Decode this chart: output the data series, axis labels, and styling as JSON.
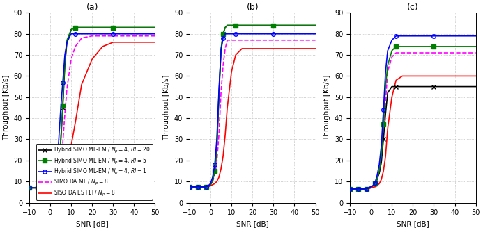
{
  "snr": [
    -10,
    -9,
    -8,
    -7,
    -6,
    -5,
    -4,
    -3,
    -2,
    -1,
    0,
    1,
    2,
    3,
    4,
    5,
    6,
    7,
    8,
    10,
    12,
    15,
    20,
    25,
    30,
    40,
    50
  ],
  "panel_a": {
    "title": "(a)",
    "hybrid_ri20": [
      7,
      7,
      7,
      7,
      7,
      7,
      7,
      7,
      7,
      7.2,
      7.5,
      8,
      9,
      11,
      16,
      28,
      45,
      65,
      76,
      82,
      83,
      83,
      83,
      83,
      83,
      83,
      83
    ],
    "hybrid_ri5": [
      7,
      7,
      7,
      7,
      7,
      7,
      7,
      7,
      7,
      7.2,
      7.5,
      8,
      9,
      11,
      16,
      29,
      46,
      67,
      77,
      82,
      83,
      83,
      83,
      83,
      83,
      83,
      83
    ],
    "hybrid_ri1": [
      7,
      7,
      7,
      7,
      7,
      7,
      7,
      7,
      7,
      7.2,
      7.5,
      8,
      9.5,
      14,
      28,
      44,
      57,
      70,
      76,
      80,
      80,
      80,
      80,
      80,
      80,
      80,
      80
    ],
    "simo_da_ml": [
      7,
      7,
      7,
      7,
      7,
      7,
      7,
      7,
      7,
      7.2,
      7.5,
      8,
      9,
      11,
      14,
      20,
      28,
      42,
      54,
      68,
      74,
      78,
      79,
      79,
      79,
      79,
      79
    ],
    "siso_da_ls": [
      7,
      7,
      7,
      7,
      7,
      7,
      7,
      7,
      7,
      7,
      7.2,
      7.3,
      7.5,
      8,
      8.5,
      9.5,
      11,
      14,
      18,
      27,
      38,
      56,
      68,
      74,
      76,
      76,
      76
    ]
  },
  "panel_b": {
    "title": "(b)",
    "hybrid_ri20": [
      7.5,
      7.5,
      7.5,
      7.5,
      7.5,
      7.5,
      7.5,
      7.5,
      7.5,
      7.8,
      8.5,
      10,
      15,
      25,
      50,
      72,
      80,
      83,
      84,
      84,
      84,
      84,
      84,
      84,
      84,
      84,
      84
    ],
    "hybrid_ri5": [
      7.5,
      7.5,
      7.5,
      7.5,
      7.5,
      7.5,
      7.5,
      7.5,
      7.5,
      7.8,
      8.5,
      10,
      15,
      26,
      51,
      73,
      80,
      83,
      84,
      84,
      84,
      84,
      84,
      84,
      84,
      84,
      84
    ],
    "hybrid_ri1": [
      7.5,
      7.5,
      7.5,
      7.5,
      7.5,
      7.5,
      7.5,
      7.5,
      7.5,
      8,
      9,
      12,
      18,
      30,
      53,
      72,
      78,
      80,
      80,
      80,
      80,
      80,
      80,
      80,
      80,
      80,
      80
    ],
    "simo_da_ml": [
      7.5,
      7.5,
      7.5,
      7.5,
      7.5,
      7.5,
      7.5,
      7.5,
      7.5,
      8,
      9,
      10.5,
      13,
      19,
      32,
      52,
      65,
      73,
      77,
      77,
      77,
      77,
      77,
      77,
      77,
      77,
      77
    ],
    "siso_da_ls": [
      7.5,
      7.5,
      7.5,
      7.5,
      7.5,
      7.5,
      7.5,
      7.5,
      7.5,
      7.5,
      8,
      8.5,
      9,
      10,
      12,
      16,
      22,
      32,
      45,
      62,
      70,
      73,
      73,
      73,
      73,
      73,
      73
    ]
  },
  "panel_c": {
    "title": "(c)",
    "hybrid_ri20": [
      6.5,
      6.5,
      6.5,
      6.5,
      6.5,
      6.5,
      6.5,
      6.5,
      6.5,
      7,
      7.5,
      8,
      9,
      11,
      14,
      19,
      30,
      42,
      52,
      55,
      55,
      55,
      55,
      55,
      55,
      55,
      55
    ],
    "hybrid_ri5": [
      6.5,
      6.5,
      6.5,
      6.5,
      6.5,
      6.5,
      6.5,
      6.5,
      6.5,
      7,
      7.5,
      8,
      9,
      11,
      15,
      22,
      37,
      55,
      65,
      72,
      74,
      74,
      74,
      74,
      74,
      74,
      74
    ],
    "hybrid_ri1": [
      6.5,
      6.5,
      6.5,
      6.5,
      6.5,
      6.5,
      6.5,
      6.5,
      6.5,
      7,
      7.5,
      8,
      9.5,
      13,
      18,
      27,
      44,
      62,
      72,
      77,
      79,
      79,
      79,
      79,
      79,
      79,
      79
    ],
    "simo_da_ml": [
      6.5,
      6.5,
      6.5,
      6.5,
      6.5,
      6.5,
      6.5,
      6.5,
      6.5,
      7,
      7.5,
      8,
      9,
      11,
      14,
      20,
      32,
      48,
      62,
      69,
      71,
      71,
      71,
      71,
      71,
      71,
      71
    ],
    "siso_da_ls": [
      6.5,
      6.5,
      6.5,
      6.5,
      6.5,
      6.5,
      6.5,
      6.5,
      6.5,
      6.5,
      7,
      7.3,
      7.5,
      8,
      9,
      11,
      15,
      22,
      35,
      50,
      58,
      60,
      60,
      60,
      60,
      60,
      60
    ]
  },
  "legend_labels": [
    "Hybrid SIMO ML-EM / $N_p = 4$, $RI = 20$",
    "Hybrid SIMO ML-EM / $N_p = 4$, $RI = 5$",
    "Hybrid SIMO ML-EM / $N_p = 4$, $RI = 1$",
    "SIMO DA ML / $N_p = 8$",
    "SISO DA LS [1] / $N_p = 8$"
  ],
  "colors": [
    "black",
    "#008000",
    "blue",
    "#ff00ff",
    "red"
  ],
  "linestyles": [
    "-",
    "-",
    "-",
    "--",
    "-"
  ],
  "markers": [
    "x",
    "s",
    "o",
    null,
    null
  ],
  "linewidths": [
    1.2,
    1.2,
    1.2,
    1.2,
    1.2
  ],
  "xlabel": "SNR [dB]",
  "ylabel": "Throughput [Kb/s]",
  "xlim": [
    -10,
    50
  ],
  "ylim": [
    0,
    90
  ],
  "yticks": [
    0,
    10,
    20,
    30,
    40,
    50,
    60,
    70,
    80,
    90
  ],
  "xticks": [
    -10,
    0,
    10,
    20,
    30,
    40,
    50
  ]
}
